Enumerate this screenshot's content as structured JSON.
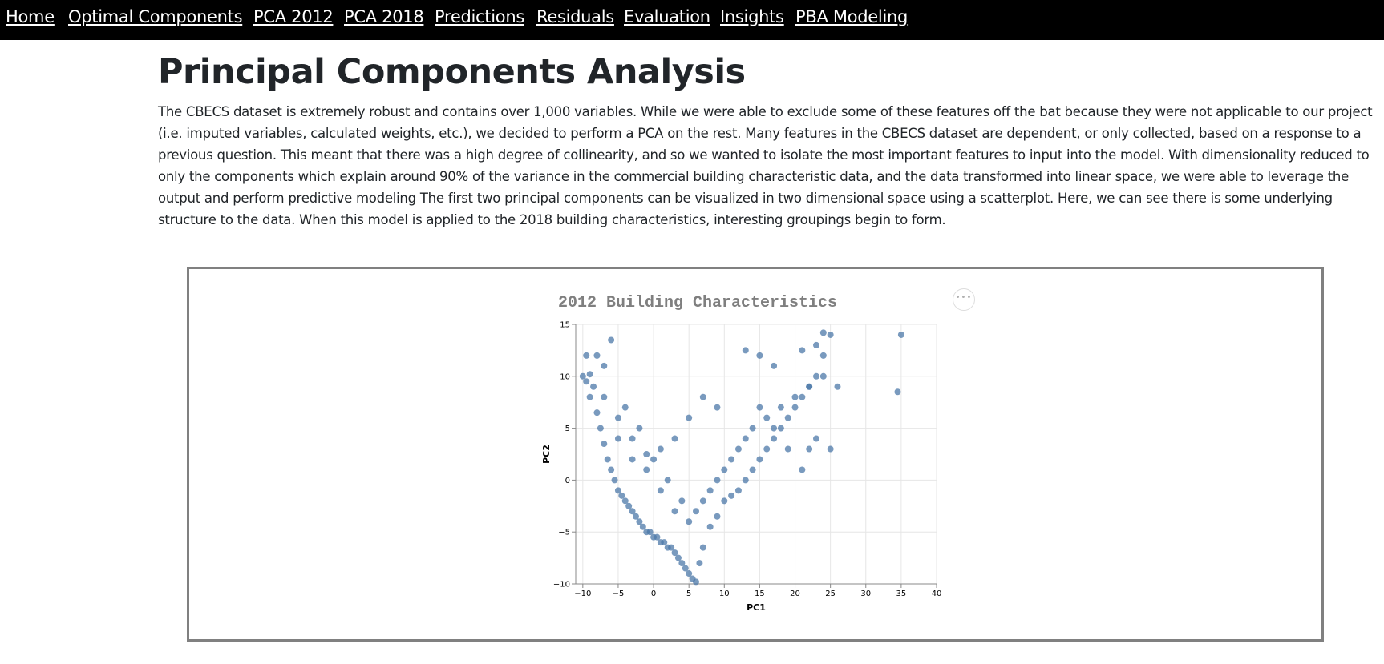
{
  "nav": {
    "items": [
      {
        "label": "Home"
      },
      {
        "label": "Optimal Components"
      },
      {
        "label": "PCA 2012"
      },
      {
        "label": "PCA 2018"
      },
      {
        "label": "Predictions"
      },
      {
        "label": "Residuals"
      },
      {
        "label": "Evaluation"
      },
      {
        "label": "Insights"
      },
      {
        "label": "PBA Modeling"
      }
    ]
  },
  "page": {
    "title": "Principal Components Analysis",
    "intro_lines": [
      "The CBECS dataset is extremely robust and contains over 1,000 variables. While we were able to exclude some of these features off the bat because they were not applicable to our project",
      "(i.e. imputed variables, calculated weights, etc.), we decided to perform a PCA on the rest. Many features in the CBECS dataset are dependent, or only collected, based on a response to a",
      "previous question. This meant that there was a high degree of collinearity, and so we wanted to isolate the most important features to input into the model. With dimensionality reduced to",
      "only the components which explain around 90% of the variance in the commercial building characteristic data, and the data transformed into linear space, we were able to leverage the",
      "output and perform predictive modeling The first two principal components can be visualized in two dimensional space using a scatterplot. Here, we can see there is some underlying",
      "structure to the data. When this model is applied to the 2018 building characteristics, interesting groupings begin to form."
    ]
  },
  "chart_menu": {
    "label": "•••",
    "icon": "ellipsis-icon"
  },
  "chart_data": {
    "type": "scatter",
    "title": "2012 Building Characteristics",
    "xlabel": "PC1",
    "ylabel": "PC2",
    "xlim": [
      -11,
      40
    ],
    "ylim": [
      -10,
      15
    ],
    "x_ticks": [
      -10,
      -5,
      0,
      5,
      10,
      15,
      20,
      25,
      30,
      35,
      40
    ],
    "y_ticks": [
      -10,
      -5,
      0,
      5,
      10,
      15
    ],
    "grid": true,
    "point_color": "#4c78a8",
    "series": [
      {
        "x": [
          -10,
          -9.5,
          -9,
          -8.5,
          -9,
          -8,
          -7.5,
          -7,
          -6.5,
          -6,
          -5.5,
          -5,
          -4.5,
          -4,
          -3.5,
          -3,
          -2.5,
          -2,
          -1.5,
          -1,
          -0.5,
          0,
          0.5,
          1,
          1.5,
          2,
          2.5,
          3,
          3.5,
          4,
          4.5,
          5,
          5.5,
          6,
          6.5,
          7,
          8,
          9,
          10,
          11,
          12,
          13,
          14,
          15,
          16,
          17,
          18,
          19,
          20,
          21,
          22,
          23,
          24,
          25,
          26,
          35,
          34.5,
          24,
          23,
          21,
          22,
          17,
          15,
          13,
          9,
          7,
          5,
          3,
          1,
          -1,
          -3,
          -5,
          -7,
          -8,
          -9.5,
          -6,
          -4,
          -2,
          0,
          2,
          4,
          6,
          8,
          10,
          12,
          14,
          16,
          18,
          20,
          22,
          24,
          -7,
          -5,
          -3,
          -1,
          1,
          3,
          5,
          7,
          9,
          11,
          13,
          15,
          17,
          19,
          21,
          23,
          25
        ],
        "y": [
          10,
          9.5,
          10.2,
          9,
          8,
          6.5,
          5,
          3.5,
          2,
          1,
          0,
          -1,
          -1.5,
          -2,
          -2.5,
          -3,
          -3.5,
          -4,
          -4.5,
          -5,
          -5,
          -5.5,
          -5.5,
          -6,
          -6,
          -6.5,
          -6.5,
          -7,
          -7.5,
          -8,
          -8.5,
          -9,
          -9.5,
          -9.8,
          -8,
          -6.5,
          -4.5,
          -3.5,
          -2,
          -1.5,
          -1,
          0,
          1,
          2,
          3,
          4,
          5,
          6,
          7,
          8,
          9,
          10,
          12,
          14,
          9,
          14,
          8.5,
          14.2,
          13,
          12.5,
          3,
          11,
          12,
          12.5,
          7,
          8,
          6,
          4,
          3,
          2.5,
          4,
          6,
          8,
          12,
          12,
          13.5,
          7,
          5,
          2,
          0,
          -2,
          -3,
          -1,
          1,
          3,
          5,
          6,
          7,
          8,
          9,
          10,
          11,
          4,
          2,
          1,
          -1,
          -3,
          -4,
          -2,
          0,
          2,
          4,
          7,
          5,
          3,
          1,
          4,
          3
        ]
      }
    ]
  }
}
